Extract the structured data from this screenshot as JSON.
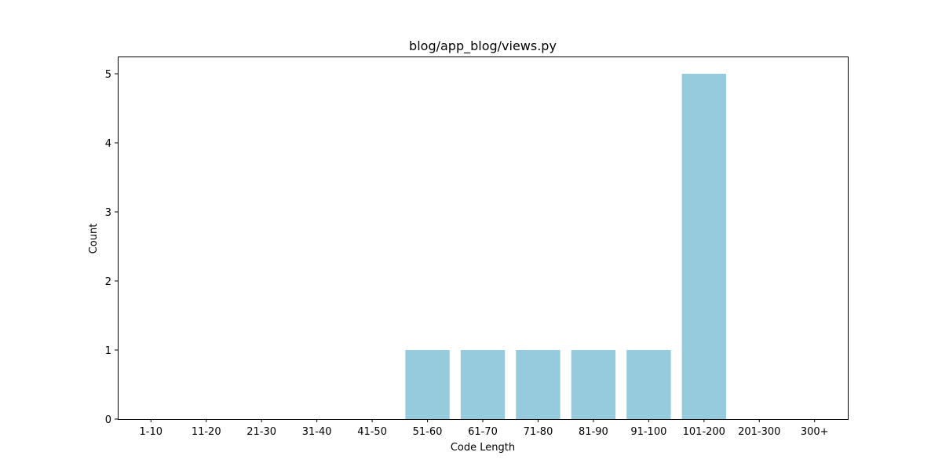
{
  "chart_data": {
    "type": "bar",
    "title": "blog/app_blog/views.py",
    "xlabel": "Code Length",
    "ylabel": "Count",
    "categories": [
      "1-10",
      "11-20",
      "21-30",
      "31-40",
      "41-50",
      "51-60",
      "61-70",
      "71-80",
      "81-90",
      "91-100",
      "101-200",
      "201-300",
      "300+"
    ],
    "values": [
      0,
      0,
      0,
      0,
      0,
      1,
      1,
      1,
      1,
      1,
      5,
      0,
      0
    ],
    "ylim": [
      0,
      5.25
    ],
    "yticks": [
      "0",
      "1",
      "2",
      "3",
      "4",
      "5"
    ],
    "grid": false,
    "bar_color": "#96cadd"
  }
}
